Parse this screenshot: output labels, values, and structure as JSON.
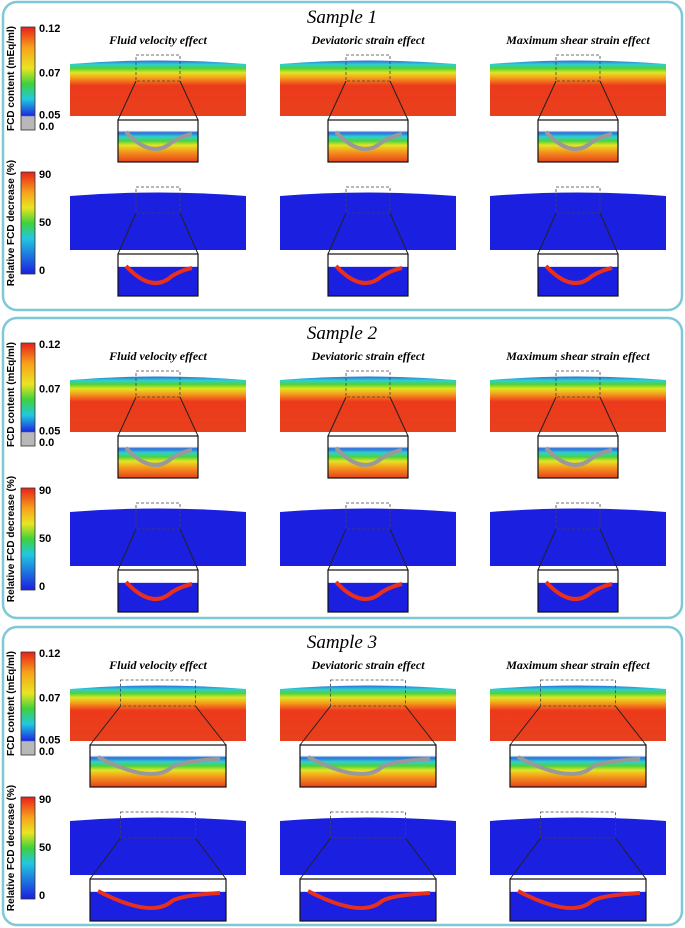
{
  "samples": [
    {
      "title": "Sample 1",
      "columns": [
        "Fluid velocity effect",
        "Deviatoric strain effect",
        "Maximum shear strain effect"
      ],
      "fcd_colorbar": {
        "label": "FCD content (mEq/ml)",
        "ticks": [
          "0.12",
          "0.07",
          "0.05",
          "0.0"
        ]
      },
      "decrease_colorbar": {
        "label": "Relative FCD decrease (%)",
        "ticks": [
          "90",
          "50",
          "0"
        ]
      }
    },
    {
      "title": "Sample 2",
      "columns": [
        "Fluid velocity effect",
        "Deviatoric strain effect",
        "Maximum shear strain effect"
      ],
      "fcd_colorbar": {
        "label": "FCD content (mEq/ml)",
        "ticks": [
          "0.12",
          "0.07",
          "0.05",
          "0.0"
        ]
      },
      "decrease_colorbar": {
        "label": "Relative FCD decrease (%)",
        "ticks": [
          "90",
          "50",
          "0"
        ]
      }
    },
    {
      "title": "Sample 3",
      "columns": [
        "Fluid velocity effect",
        "Deviatoric strain effect",
        "Maximum shear strain effect"
      ],
      "fcd_colorbar": {
        "label": "FCD content (mEq/ml)",
        "ticks": [
          "0.12",
          "0.07",
          "0.05",
          "0.0"
        ]
      },
      "decrease_colorbar": {
        "label": "Relative FCD decrease (%)",
        "ticks": [
          "90",
          "50",
          "0"
        ]
      }
    }
  ]
}
